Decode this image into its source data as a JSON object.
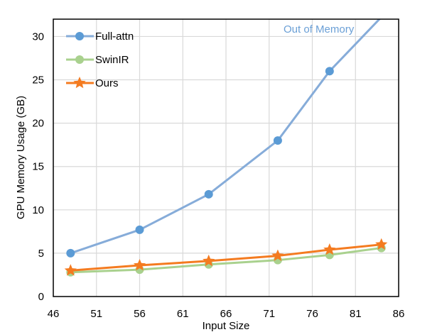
{
  "chart_data": {
    "type": "line",
    "title": "",
    "xlabel": "Input Size",
    "ylabel": "GPU Memory Usage (GB)",
    "xlim": [
      46,
      86
    ],
    "ylim": [
      0,
      32
    ],
    "xticks": [
      46,
      51,
      56,
      61,
      66,
      71,
      76,
      81,
      86
    ],
    "yticks": [
      0,
      5,
      10,
      15,
      20,
      25,
      30
    ],
    "grid": true,
    "legend_position": "top-left",
    "x": [
      48,
      56,
      64,
      72,
      78,
      84
    ],
    "series": [
      {
        "name": "Full-attn",
        "values": [
          5.0,
          7.7,
          11.8,
          18.0,
          26.0,
          null
        ],
        "color": "#5b9bd5",
        "line_color": "#86acd9",
        "marker": "circle"
      },
      {
        "name": "SwinIR",
        "values": [
          2.8,
          3.1,
          3.7,
          4.2,
          4.8,
          5.6
        ],
        "color": "#a9d18e",
        "line_color": "#a9d18e",
        "marker": "circle"
      },
      {
        "name": "Ours",
        "values": [
          3.0,
          3.6,
          4.1,
          4.7,
          5.4,
          6.0
        ],
        "color": "#f47b20",
        "line_color": "#f47b20",
        "marker": "star"
      }
    ],
    "annotations": [
      {
        "text": "Out of Memory",
        "color": "#6a9fd6"
      }
    ]
  }
}
